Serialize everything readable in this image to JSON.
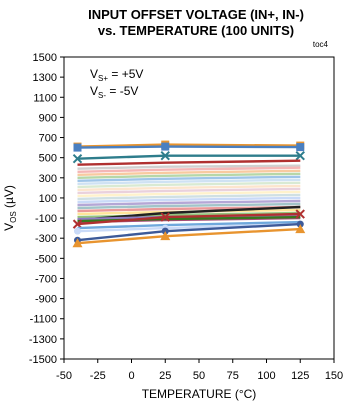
{
  "chart_data": {
    "type": "line",
    "title_line1": "INPUT OFFSET VOLTAGE  (IN+, IN-)",
    "title_line2": "vs. TEMPERATURE (100 UNITS)",
    "figure_tag": "toc4",
    "xlabel": "TEMPERATURE (°C)",
    "ylabel_main": "V",
    "ylabel_sub": "OS",
    "ylabel_unit": " (µV)",
    "annotation_1": {
      "main": "V",
      "sub": "S+",
      "rest": " = +5V"
    },
    "annotation_2": {
      "main": "V",
      "sub": "S-",
      "rest": " = -5V"
    },
    "xlim": [
      -50,
      150
    ],
    "ylim": [
      -1500,
      1500
    ],
    "x_ticks": [
      "-50",
      "-25",
      "0",
      "25",
      "50",
      "75",
      "100",
      "125",
      "150"
    ],
    "y_ticks": [
      "1500",
      "1300",
      "1100",
      "900",
      "700",
      "500",
      "300",
      "100",
      "-100",
      "-300",
      "-500",
      "-700",
      "-900",
      "-1100",
      "-1300",
      "-1500"
    ],
    "grid": false,
    "x": [
      -40,
      25,
      125
    ],
    "series": [
      {
        "values": [
          610,
          630,
          620
        ],
        "color": "#e8942f",
        "marker": "square"
      },
      {
        "values": [
          600,
          610,
          605
        ],
        "color": "#4a7fc0",
        "marker": "square"
      },
      {
        "values": [
          490,
          520,
          520
        ],
        "color": "#2e7d8c",
        "marker": "x"
      },
      {
        "values": [
          430,
          450,
          470
        ],
        "color": "#b03030",
        "marker": "none"
      },
      {
        "values": [
          390,
          410,
          420
        ],
        "color": "#d0d0d0",
        "marker": "none"
      },
      {
        "values": [
          360,
          380,
          400
        ],
        "color": "#f4b6b6",
        "marker": "none"
      },
      {
        "values": [
          330,
          350,
          370
        ],
        "color": "#f8caa0",
        "marker": "none"
      },
      {
        "values": [
          300,
          320,
          340
        ],
        "color": "#b7d7a8",
        "marker": "none"
      },
      {
        "values": [
          270,
          290,
          310
        ],
        "color": "#9fc5e8",
        "marker": "none"
      },
      {
        "values": [
          240,
          260,
          280
        ],
        "color": "#cfe2f3",
        "marker": "none"
      },
      {
        "values": [
          210,
          230,
          250
        ],
        "color": "#d9ead3",
        "marker": "none"
      },
      {
        "values": [
          180,
          200,
          220
        ],
        "color": "#fce5cd",
        "marker": "none"
      },
      {
        "values": [
          150,
          170,
          190
        ],
        "color": "#ead1dc",
        "marker": "none"
      },
      {
        "values": [
          120,
          140,
          160
        ],
        "color": "#fff2cc",
        "marker": "none"
      },
      {
        "values": [
          90,
          110,
          130
        ],
        "color": "#d0e0e3",
        "marker": "none"
      },
      {
        "values": [
          60,
          80,
          100
        ],
        "color": "#c9daf8",
        "marker": "none"
      },
      {
        "values": [
          30,
          50,
          70
        ],
        "color": "#b4a7d6",
        "marker": "none"
      },
      {
        "values": [
          0,
          20,
          40
        ],
        "color": "#a2c4c9",
        "marker": "none"
      },
      {
        "values": [
          -30,
          -10,
          10
        ],
        "color": "#ea9999",
        "marker": "none"
      },
      {
        "values": [
          -60,
          -40,
          -20
        ],
        "color": "#ffe599",
        "marker": "none"
      },
      {
        "values": [
          -90,
          -70,
          -50
        ],
        "color": "#93c47d",
        "marker": "none"
      },
      {
        "values": [
          -120,
          -50,
          10
        ],
        "color": "#222222",
        "marker": "none"
      },
      {
        "values": [
          -110,
          -90,
          -70
        ],
        "color": "#8e7cc3",
        "marker": "none"
      },
      {
        "values": [
          -140,
          -120,
          -100
        ],
        "color": "#a64d79",
        "marker": "none"
      },
      {
        "values": [
          -130,
          -110,
          -90
        ],
        "color": "#38761d",
        "marker": "none"
      },
      {
        "values": [
          -160,
          -90,
          -60
        ],
        "color": "#b03030",
        "marker": "x"
      },
      {
        "values": [
          -200,
          -170,
          -140
        ],
        "color": "#6fa8dc",
        "marker": "none"
      },
      {
        "values": [
          -230,
          -200,
          -160
        ],
        "color": "#c9daf8",
        "marker": "circle"
      },
      {
        "values": [
          -320,
          -230,
          -160
        ],
        "color": "#3d5a99",
        "marker": "circle"
      },
      {
        "values": [
          -350,
          -280,
          -210
        ],
        "color": "#e8942f",
        "marker": "triangle"
      }
    ]
  }
}
